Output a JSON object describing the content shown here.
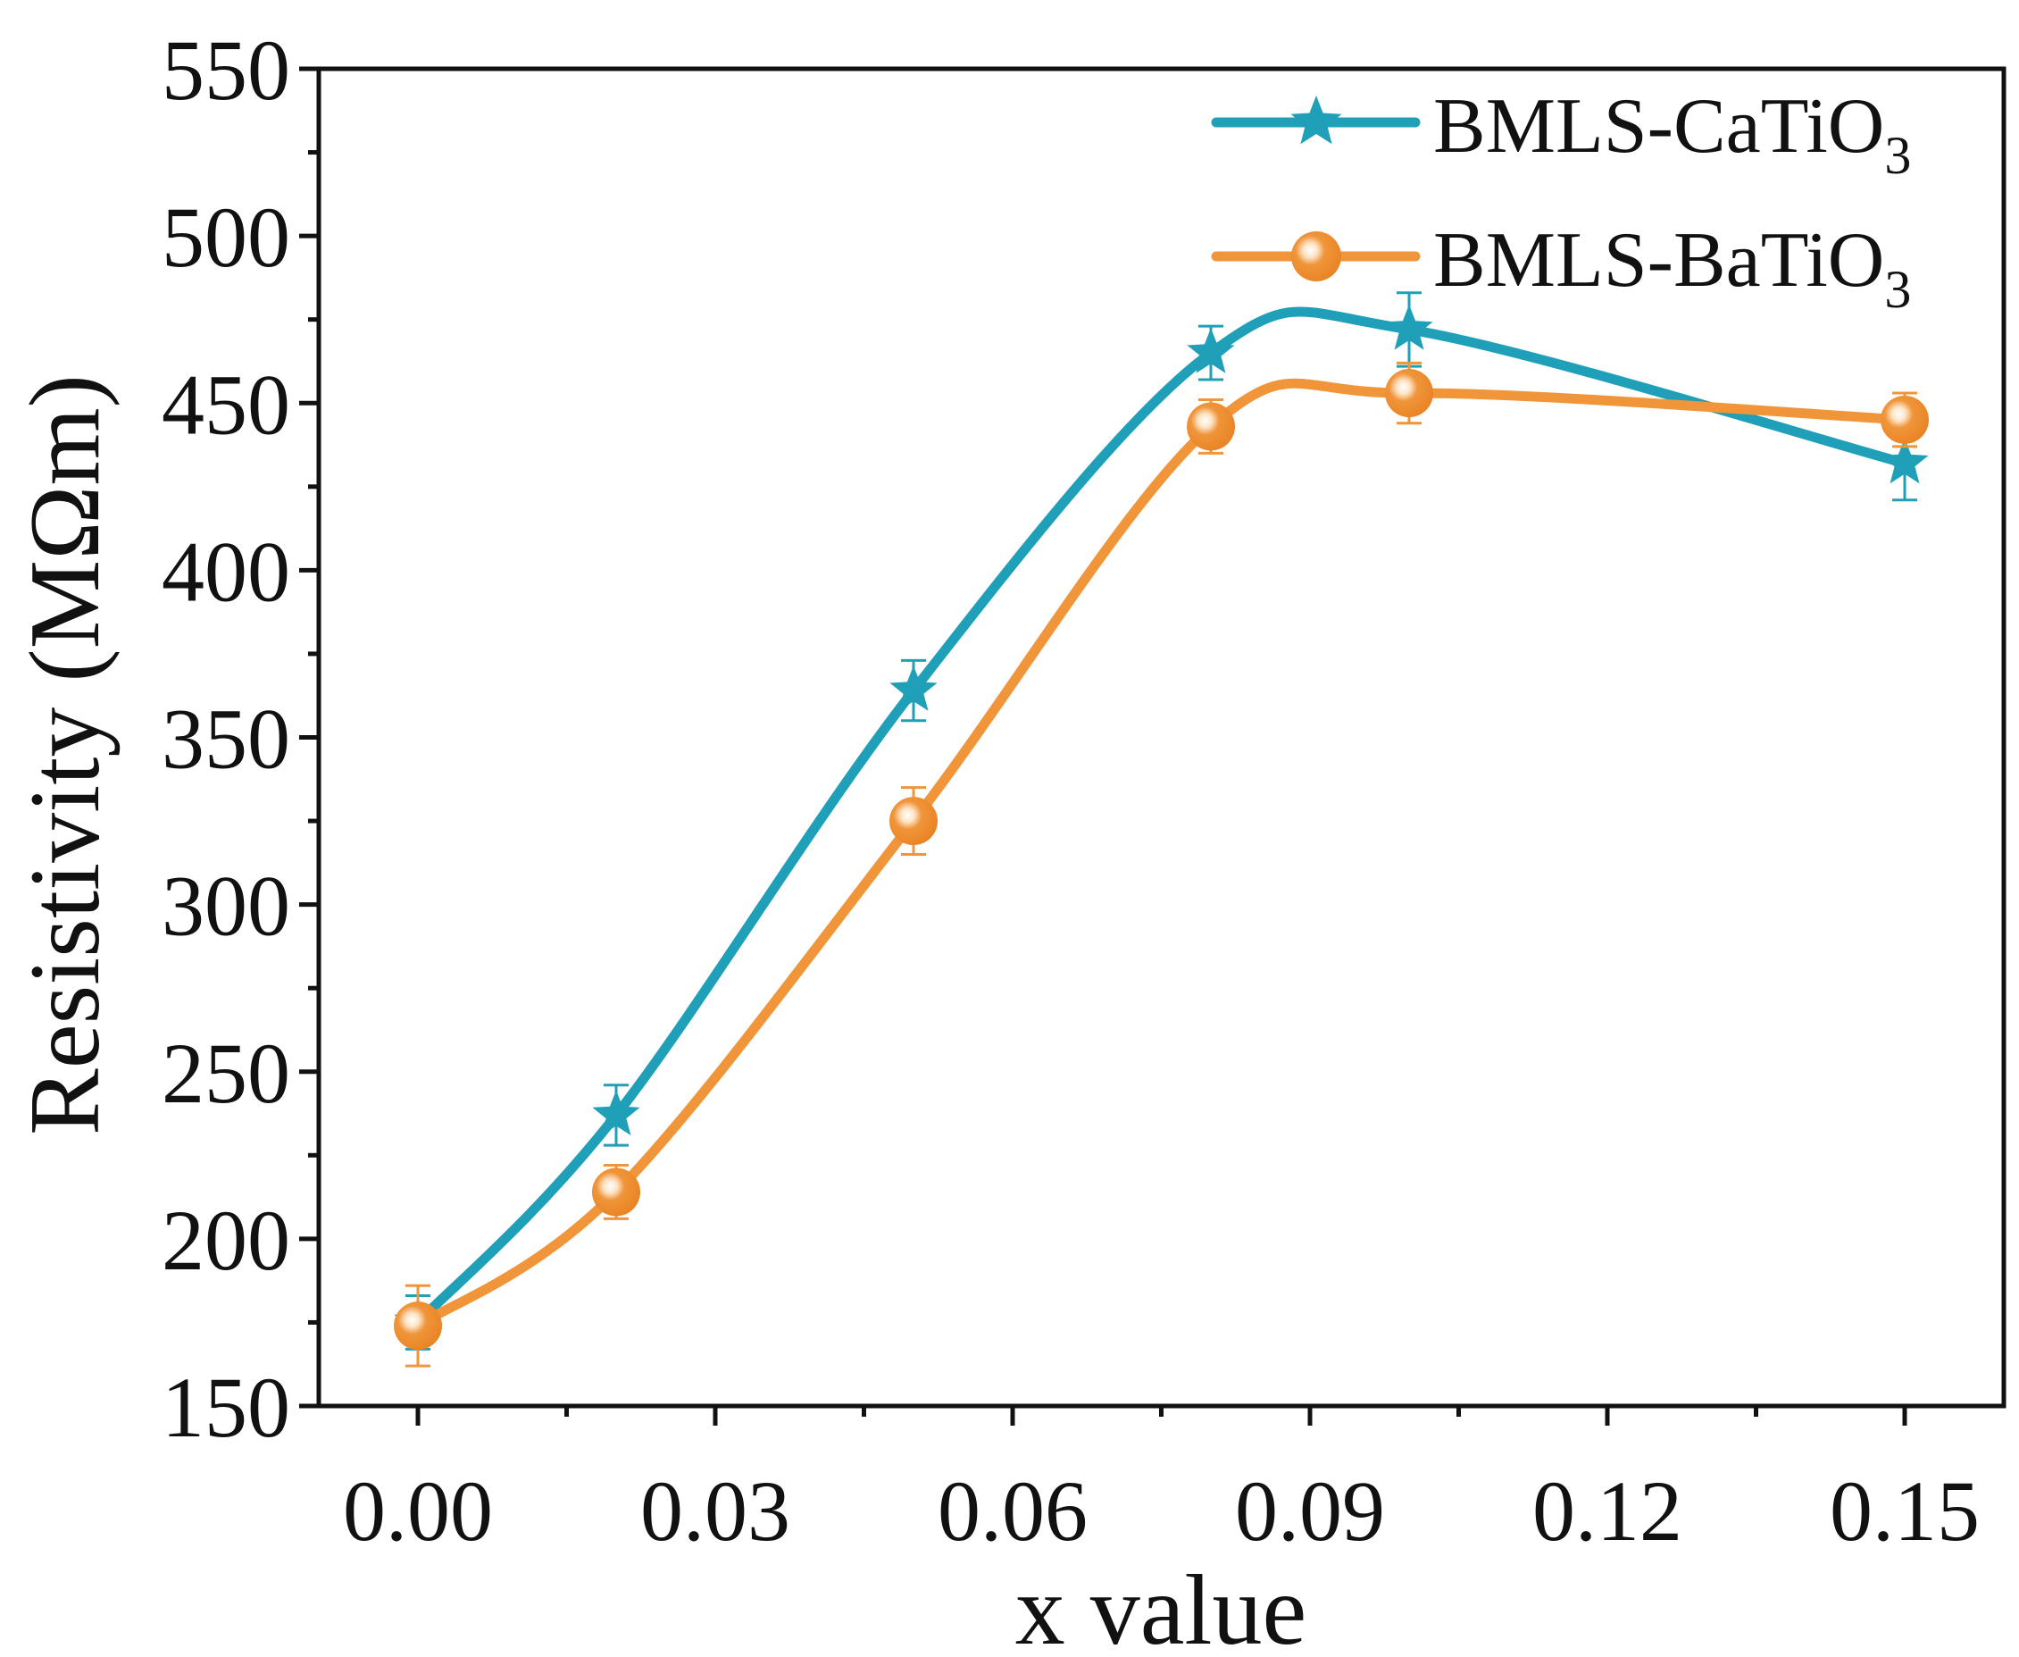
{
  "chart_data": {
    "type": "line",
    "title": "",
    "xlabel": "x value",
    "ylabel": "Resistivity (MΩm)",
    "xlim": [
      -0.01,
      0.16
    ],
    "ylim": [
      150,
      550
    ],
    "x_ticks": [
      0.0,
      0.03,
      0.06,
      0.09,
      0.12,
      0.15
    ],
    "x_tick_labels": [
      "0.00",
      "0.03",
      "0.06",
      "0.09",
      "0.12",
      "0.15"
    ],
    "y_ticks": [
      150,
      200,
      250,
      300,
      350,
      400,
      450,
      500,
      550
    ],
    "y_tick_labels": [
      "150",
      "200",
      "250",
      "300",
      "350",
      "400",
      "450",
      "500",
      "550"
    ],
    "grid": false,
    "legend_position": "top-right",
    "series": [
      {
        "name": "BMLS-CaTiO3",
        "legend_main": "BMLS-CaTiO",
        "legend_sub": "3",
        "color": "#1f9fb8",
        "marker": "star",
        "x": [
          0.0,
          0.02,
          0.05,
          0.08,
          0.1,
          0.15
        ],
        "values": [
          175,
          237,
          364,
          465,
          472,
          432
        ],
        "errors": [
          8,
          9,
          9,
          8,
          11,
          11
        ]
      },
      {
        "name": "BMLS-BaTiO3",
        "legend_main": "BMLS-BaTiO",
        "legend_sub": "3",
        "color": "#f0953a",
        "marker": "circle",
        "x": [
          0.0,
          0.02,
          0.05,
          0.08,
          0.1,
          0.15
        ],
        "values": [
          174,
          214,
          325,
          443,
          453,
          445
        ],
        "errors": [
          12,
          8,
          10,
          8,
          9,
          8
        ]
      }
    ]
  }
}
